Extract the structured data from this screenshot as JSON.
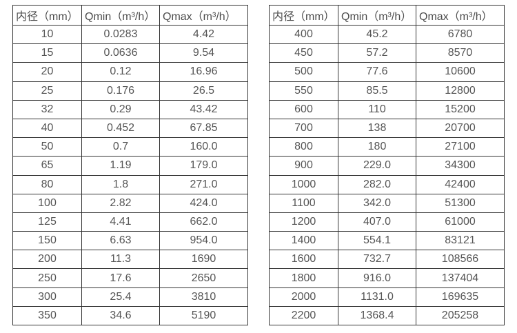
{
  "styles": {
    "border_color": "#333333",
    "text_color": "#555555",
    "header_text_color": "#4d4d4d",
    "background": "#ffffff"
  },
  "chart_data": [
    {
      "type": "table",
      "title": "",
      "columns": [
        "内径（mm）",
        "Qmin（m³/h）",
        "Qmax（m³/h）"
      ],
      "rows": [
        [
          "10",
          "0.0283",
          "4.42"
        ],
        [
          "15",
          "0.0636",
          "9.54"
        ],
        [
          "20",
          "0.12",
          "16.96"
        ],
        [
          "25",
          "0.176",
          "26.5"
        ],
        [
          "32",
          "0.29",
          "43.42"
        ],
        [
          "40",
          "0.452",
          "67.85"
        ],
        [
          "50",
          "0.7",
          "160.0"
        ],
        [
          "65",
          "1.19",
          "179.0"
        ],
        [
          "80",
          "1.8",
          "271.0"
        ],
        [
          "100",
          "2.82",
          "424.0"
        ],
        [
          "125",
          "4.41",
          "662.0"
        ],
        [
          "150",
          "6.63",
          "954.0"
        ],
        [
          "200",
          "11.3",
          "1690"
        ],
        [
          "250",
          "17.6",
          "2650"
        ],
        [
          "300",
          "25.4",
          "3810"
        ],
        [
          "350",
          "34.6",
          "5190"
        ]
      ]
    },
    {
      "type": "table",
      "title": "",
      "columns": [
        "内径（mm）",
        "Qmin（m³/h）",
        "Qmax（m³/h）"
      ],
      "rows": [
        [
          "400",
          "45.2",
          "6780"
        ],
        [
          "450",
          "57.2",
          "8570"
        ],
        [
          "500",
          "77.6",
          "10600"
        ],
        [
          "550",
          "85.5",
          "12800"
        ],
        [
          "600",
          "110",
          "15200"
        ],
        [
          "700",
          "138",
          "20700"
        ],
        [
          "800",
          "180",
          "27100"
        ],
        [
          "900",
          "229.0",
          "34300"
        ],
        [
          "1000",
          "282.0",
          "42400"
        ],
        [
          "1100",
          "342.0",
          "51300"
        ],
        [
          "1200",
          "407.0",
          "61000"
        ],
        [
          "1400",
          "554.1",
          "83121"
        ],
        [
          "1600",
          "732.7",
          "108566"
        ],
        [
          "1800",
          "916.0",
          "137404"
        ],
        [
          "2000",
          "1131.0",
          "169635"
        ],
        [
          "2200",
          "1368.4",
          "205258"
        ]
      ]
    }
  ]
}
